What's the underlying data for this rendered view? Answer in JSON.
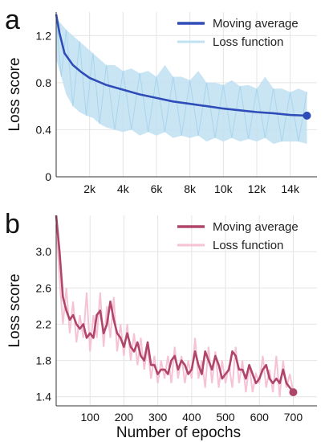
{
  "chart_data": [
    {
      "panel": "a",
      "type": "line",
      "xlabel": "",
      "ylabel": "Loss score",
      "xlim": [
        0,
        15600
      ],
      "ylim": [
        0,
        1.4
      ],
      "xticks": [
        2000,
        4000,
        6000,
        8000,
        10000,
        12000,
        14000
      ],
      "xtick_labels": [
        "2k",
        "4k",
        "6k",
        "8k",
        "10k",
        "12k",
        "14k"
      ],
      "yticks": [
        0,
        0.4,
        0.8,
        1.2
      ],
      "ytick_labels": [
        "0",
        "0.4",
        "0.8",
        "1.2"
      ],
      "grid": true,
      "legend": "top-right",
      "series": [
        {
          "name": "Moving average",
          "color": "#2f4db8",
          "x": [
            0,
            200,
            500,
            1000,
            1500,
            2000,
            3000,
            4000,
            5000,
            6000,
            7000,
            8000,
            9000,
            10000,
            11000,
            12000,
            13000,
            14000,
            15000
          ],
          "y": [
            1.38,
            1.22,
            1.05,
            0.95,
            0.89,
            0.84,
            0.78,
            0.74,
            0.7,
            0.67,
            0.64,
            0.62,
            0.6,
            0.58,
            0.565,
            0.55,
            0.54,
            0.525,
            0.52
          ],
          "end_marker": true
        },
        {
          "name": "Loss function",
          "color": "#bfe1f2",
          "x": [
            0,
            300,
            600,
            1000,
            1400,
            1800,
            2200,
            2600,
            3000,
            3500,
            4000,
            4500,
            5000,
            5500,
            6000,
            6500,
            7000,
            7500,
            8000,
            8500,
            9000,
            9500,
            10000,
            10500,
            11000,
            11500,
            12000,
            12500,
            13000,
            13500,
            14000,
            14500,
            15000
          ],
          "upper": [
            1.35,
            1.3,
            1.25,
            1.2,
            1.15,
            1.1,
            1.05,
            1.0,
            0.95,
            0.95,
            0.9,
            0.92,
            0.88,
            0.9,
            0.85,
            0.95,
            0.85,
            0.85,
            0.82,
            0.9,
            0.8,
            0.8,
            0.78,
            0.82,
            0.77,
            0.78,
            0.75,
            0.85,
            0.75,
            0.75,
            0.72,
            0.75,
            0.72
          ],
          "lower": [
            1.0,
            0.85,
            0.7,
            0.6,
            0.55,
            0.52,
            0.5,
            0.45,
            0.42,
            0.4,
            0.38,
            0.4,
            0.35,
            0.38,
            0.35,
            0.38,
            0.33,
            0.35,
            0.33,
            0.35,
            0.3,
            0.33,
            0.3,
            0.33,
            0.3,
            0.32,
            0.3,
            0.33,
            0.28,
            0.3,
            0.3,
            0.3,
            0.28
          ]
        }
      ]
    },
    {
      "panel": "b",
      "type": "line",
      "xlabel": "Number of epochs",
      "ylabel": "Loss score",
      "xlim": [
        0,
        770
      ],
      "ylim": [
        1.3,
        3.4
      ],
      "xticks": [
        100,
        200,
        300,
        400,
        500,
        600,
        700
      ],
      "xtick_labels": [
        "100",
        "200",
        "300",
        "400",
        "500",
        "600",
        "700"
      ],
      "yticks": [
        1.4,
        1.8,
        2.2,
        2.6,
        3.0
      ],
      "ytick_labels": [
        "1.4",
        "1.8",
        "2.2",
        "2.6",
        "3.0"
      ],
      "grid": true,
      "legend": "top-right",
      "series": [
        {
          "name": "Moving average",
          "color": "#b0456a",
          "x": [
            0,
            10,
            20,
            30,
            40,
            50,
            60,
            70,
            80,
            90,
            100,
            110,
            120,
            130,
            140,
            150,
            160,
            170,
            180,
            190,
            200,
            210,
            220,
            230,
            240,
            250,
            260,
            270,
            280,
            290,
            300,
            310,
            320,
            330,
            340,
            350,
            360,
            370,
            380,
            390,
            400,
            410,
            420,
            430,
            440,
            450,
            460,
            470,
            480,
            490,
            500,
            510,
            520,
            530,
            540,
            550,
            560,
            570,
            580,
            590,
            600,
            610,
            620,
            630,
            640,
            650,
            660,
            670,
            680,
            690,
            700
          ],
          "y": [
            3.4,
            3.0,
            2.5,
            2.35,
            2.25,
            2.3,
            2.2,
            2.15,
            2.2,
            2.05,
            2.1,
            2.05,
            2.3,
            2.35,
            2.1,
            2.2,
            2.45,
            2.25,
            2.1,
            2.05,
            1.95,
            2.1,
            1.95,
            1.9,
            2.0,
            1.85,
            1.8,
            2.0,
            1.75,
            1.75,
            1.65,
            1.7,
            1.7,
            1.65,
            1.8,
            1.85,
            1.7,
            1.8,
            1.75,
            1.65,
            1.7,
            1.9,
            1.75,
            1.65,
            1.9,
            1.8,
            1.7,
            1.85,
            1.75,
            1.6,
            1.65,
            1.7,
            1.9,
            1.85,
            1.7,
            1.7,
            1.6,
            1.75,
            1.65,
            1.55,
            1.6,
            1.7,
            1.75,
            1.6,
            1.55,
            1.6,
            1.55,
            1.7,
            1.55,
            1.5,
            1.45
          ],
          "end_marker": true
        },
        {
          "name": "Loss function",
          "color": "#f5c2d6",
          "x": [
            0,
            10,
            20,
            30,
            40,
            50,
            60,
            70,
            80,
            90,
            100,
            110,
            120,
            130,
            140,
            150,
            160,
            170,
            180,
            190,
            200,
            210,
            220,
            230,
            240,
            250,
            260,
            270,
            280,
            290,
            300,
            310,
            320,
            330,
            340,
            350,
            360,
            370,
            380,
            390,
            400,
            410,
            420,
            430,
            440,
            450,
            460,
            470,
            480,
            490,
            500,
            510,
            520,
            530,
            540,
            550,
            560,
            570,
            580,
            590,
            600,
            610,
            620,
            630,
            640,
            650,
            660,
            670,
            680,
            690,
            700
          ],
          "y": [
            3.3,
            2.7,
            2.2,
            2.6,
            2.1,
            2.45,
            2.0,
            2.3,
            2.05,
            2.55,
            1.9,
            2.3,
            2.05,
            2.55,
            1.95,
            2.4,
            2.05,
            2.5,
            1.9,
            2.2,
            1.85,
            2.2,
            1.8,
            2.1,
            1.75,
            2.05,
            1.7,
            1.95,
            1.6,
            1.85,
            1.55,
            1.8,
            1.6,
            1.85,
            1.55,
            1.95,
            1.6,
            1.85,
            1.55,
            1.8,
            1.6,
            2.05,
            1.6,
            1.8,
            1.5,
            1.95,
            1.55,
            1.9,
            1.5,
            1.8,
            1.55,
            1.75,
            1.5,
            1.95,
            1.55,
            1.8,
            1.45,
            1.75,
            1.45,
            1.65,
            1.55,
            1.85,
            1.5,
            1.7,
            1.45,
            1.85,
            1.4,
            1.8,
            1.5,
            1.65,
            1.45
          ]
        }
      ]
    }
  ]
}
